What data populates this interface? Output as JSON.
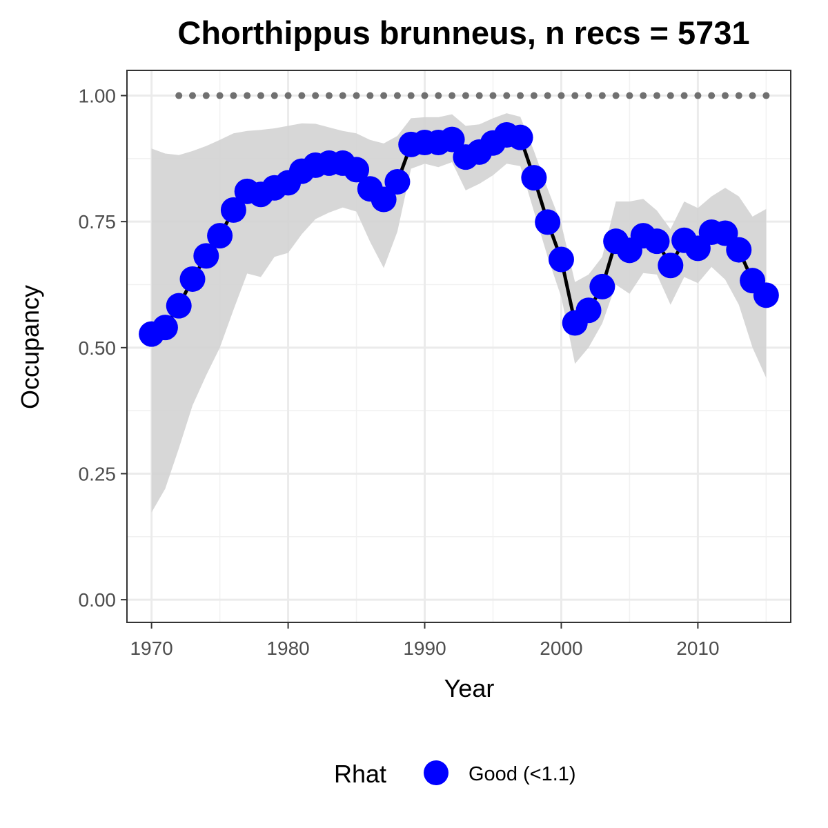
{
  "chart_data": {
    "type": "line",
    "title": "Chorthippus brunneus, n recs = 5731",
    "xlabel": "Year",
    "ylabel": "Occupancy",
    "xlim": [
      1968.2,
      2016.8
    ],
    "ylim": [
      -0.045,
      1.05
    ],
    "x_ticks": [
      1970,
      1980,
      1990,
      2000,
      2010
    ],
    "x_tick_labels": [
      "1970",
      "1980",
      "1990",
      "2000",
      "2010"
    ],
    "y_ticks": [
      0,
      0.25,
      0.5,
      0.75,
      1
    ],
    "y_tick_labels": [
      "0.00",
      "0.25",
      "0.50",
      "0.75",
      "1.00"
    ],
    "grid": true,
    "legend": {
      "title": "Rhat",
      "position": "bottom",
      "entries": [
        {
          "label": "Good (<1.1)",
          "color": "#0000ff"
        }
      ]
    },
    "colors": {
      "points": "#0000ff",
      "line": "#000000",
      "ribbon": "#d3d3d3",
      "reference": "#707070"
    },
    "years": [
      1970,
      1971,
      1972,
      1973,
      1974,
      1975,
      1976,
      1977,
      1978,
      1979,
      1980,
      1981,
      1982,
      1983,
      1984,
      1985,
      1986,
      1987,
      1988,
      1989,
      1990,
      1991,
      1992,
      1993,
      1994,
      1995,
      1996,
      1997,
      1998,
      1999,
      2000,
      2001,
      2002,
      2003,
      2004,
      2005,
      2006,
      2007,
      2008,
      2009,
      2010,
      2011,
      2012,
      2013,
      2014,
      2015
    ],
    "occupancy": [
      0.527,
      0.54,
      0.583,
      0.636,
      0.682,
      0.722,
      0.773,
      0.81,
      0.804,
      0.817,
      0.827,
      0.85,
      0.862,
      0.866,
      0.866,
      0.853,
      0.815,
      0.794,
      0.829,
      0.903,
      0.907,
      0.907,
      0.913,
      0.878,
      0.888,
      0.906,
      0.922,
      0.917,
      0.837,
      0.749,
      0.675,
      0.549,
      0.574,
      0.621,
      0.711,
      0.693,
      0.722,
      0.711,
      0.663,
      0.713,
      0.697,
      0.729,
      0.727,
      0.694,
      0.633,
      0.604
    ],
    "lower_ci": [
      0.173,
      0.22,
      0.3,
      0.385,
      0.445,
      0.5,
      0.575,
      0.647,
      0.64,
      0.68,
      0.688,
      0.725,
      0.755,
      0.768,
      0.778,
      0.77,
      0.71,
      0.658,
      0.73,
      0.855,
      0.865,
      0.858,
      0.868,
      0.812,
      0.825,
      0.842,
      0.865,
      0.86,
      0.77,
      0.68,
      0.6,
      0.468,
      0.5,
      0.548,
      0.625,
      0.607,
      0.648,
      0.645,
      0.585,
      0.64,
      0.628,
      0.66,
      0.635,
      0.585,
      0.5,
      0.44
    ],
    "upper_ci": [
      0.895,
      0.885,
      0.882,
      0.89,
      0.9,
      0.912,
      0.925,
      0.93,
      0.932,
      0.935,
      0.94,
      0.945,
      0.944,
      0.937,
      0.93,
      0.925,
      0.912,
      0.905,
      0.92,
      0.955,
      0.957,
      0.957,
      0.963,
      0.94,
      0.943,
      0.955,
      0.965,
      0.958,
      0.89,
      0.815,
      0.745,
      0.63,
      0.645,
      0.68,
      0.79,
      0.79,
      0.795,
      0.772,
      0.735,
      0.79,
      0.777,
      0.8,
      0.817,
      0.8,
      0.76,
      0.775
    ],
    "reference_line": {
      "y": 1.0,
      "x_range": [
        1972,
        2015
      ],
      "style": "dotted"
    }
  }
}
